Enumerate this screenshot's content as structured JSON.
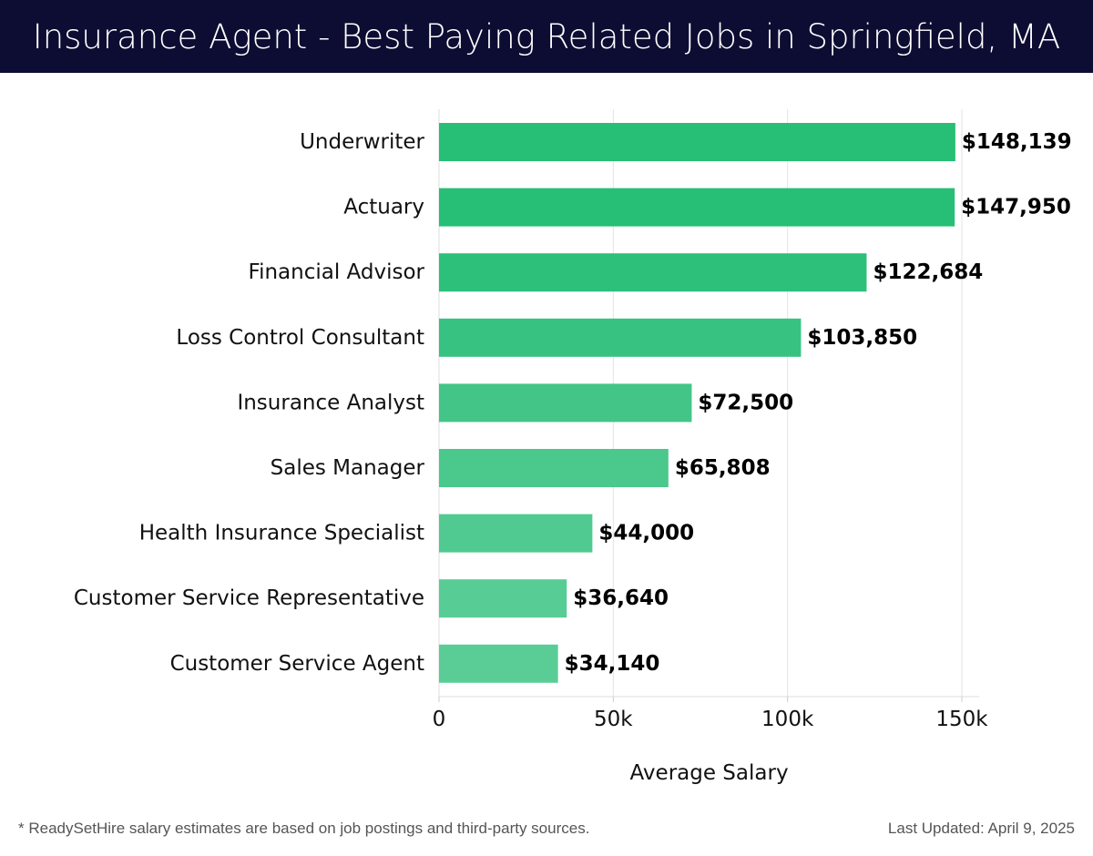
{
  "header": {
    "title": "Insurance Agent - Best Paying Related Jobs in Springfield, MA"
  },
  "chart_data": {
    "type": "bar",
    "orientation": "horizontal",
    "title": "Insurance Agent - Best Paying Related Jobs in Springfield, MA",
    "xlabel": "Average Salary",
    "ylabel": "",
    "xlim": [
      0,
      155000
    ],
    "x_ticks": [
      0,
      50000,
      100000,
      150000
    ],
    "x_tick_labels": [
      "0",
      "50k",
      "100k",
      "150k"
    ],
    "grid": "vertical",
    "categories": [
      "Underwriter",
      "Actuary",
      "Financial Advisor",
      "Loss Control Consultant",
      "Insurance Analyst",
      "Sales Manager",
      "Health Insurance Specialist",
      "Customer Service Representative",
      "Customer Service Agent"
    ],
    "values": [
      148139,
      147950,
      122684,
      103850,
      72500,
      65808,
      44000,
      36640,
      34140
    ],
    "value_labels": [
      "$148,139",
      "$147,950",
      "$122,684",
      "$103,850",
      "$72,500",
      "$65,808",
      "$44,000",
      "$36,640",
      "$34,140"
    ],
    "bar_colors": [
      "#27be76",
      "#27be76",
      "#2dc07b",
      "#37c281",
      "#42c587",
      "#4bc88c",
      "#51ca91",
      "#57cc95",
      "#5acd97"
    ]
  },
  "footer": {
    "note": "* ReadySetHire salary estimates are based on job postings and third-party sources.",
    "updated": "Last Updated: April 9, 2025"
  }
}
